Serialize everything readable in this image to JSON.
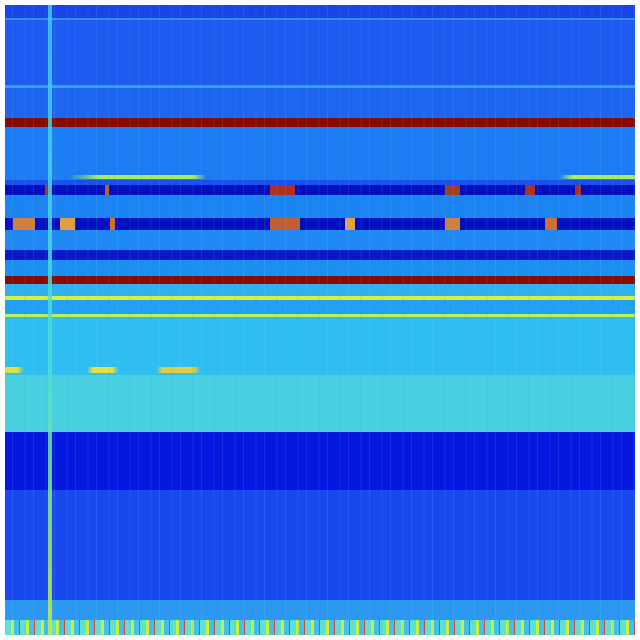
{
  "colormap": {
    "low": "#0010c0",
    "mid_low": "#1a5cf0",
    "mid": "#30c0f0",
    "mid_high": "#c8f040",
    "high": "#8b0000"
  }
}
